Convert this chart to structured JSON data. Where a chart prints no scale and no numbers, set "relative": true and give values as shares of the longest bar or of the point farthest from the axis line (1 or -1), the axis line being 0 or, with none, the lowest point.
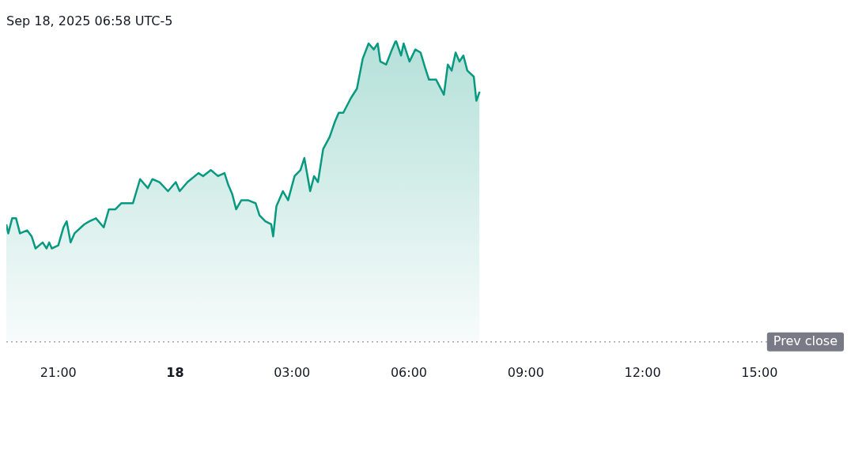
{
  "chart_data": {
    "type": "area",
    "title": "Sep 18, 2025 06:58 UTC-5",
    "relative": true,
    "x": [
      "2025-09-17T19:40",
      "2025-09-17T19:43",
      "2025-09-17T19:49",
      "2025-09-17T19:55",
      "2025-09-17T20:01",
      "2025-09-17T20:12",
      "2025-09-17T20:19",
      "2025-09-17T20:25",
      "2025-09-17T20:36",
      "2025-09-17T20:42",
      "2025-09-17T20:46",
      "2025-09-17T20:50",
      "2025-09-17T21:00",
      "2025-09-17T21:08",
      "2025-09-17T21:13",
      "2025-09-17T21:19",
      "2025-09-17T21:25",
      "2025-09-17T21:40",
      "2025-09-17T21:48",
      "2025-09-17T21:58",
      "2025-09-17T22:10",
      "2025-09-17T22:18",
      "2025-09-17T22:28",
      "2025-09-17T22:37",
      "2025-09-17T22:46",
      "2025-09-17T22:55",
      "2025-09-17T23:06",
      "2025-09-17T23:18",
      "2025-09-17T23:25",
      "2025-09-17T23:36",
      "2025-09-17T23:49",
      "2025-09-18T00:01",
      "2025-09-18T00:07",
      "2025-09-18T00:19",
      "2025-09-18T00:36",
      "2025-09-18T00:43",
      "2025-09-18T00:55",
      "2025-09-18T01:06",
      "2025-09-18T01:16",
      "2025-09-18T01:22",
      "2025-09-18T01:28",
      "2025-09-18T01:34",
      "2025-09-18T01:42",
      "2025-09-18T01:52",
      "2025-09-18T02:04",
      "2025-09-18T02:10",
      "2025-09-18T02:19",
      "2025-09-18T02:28",
      "2025-09-18T02:31",
      "2025-09-18T02:36",
      "2025-09-18T02:46",
      "2025-09-18T02:54",
      "2025-09-18T03:04",
      "2025-09-18T03:13",
      "2025-09-18T03:19",
      "2025-09-18T03:28",
      "2025-09-18T03:34",
      "2025-09-18T03:40",
      "2025-09-18T03:48",
      "2025-09-18T03:58",
      "2025-09-18T04:06",
      "2025-09-18T04:12",
      "2025-09-18T04:19",
      "2025-09-18T04:31",
      "2025-09-18T04:40",
      "2025-09-18T04:49",
      "2025-09-18T04:58",
      "2025-09-18T05:06",
      "2025-09-18T05:12",
      "2025-09-18T05:16",
      "2025-09-18T05:25",
      "2025-09-18T05:34",
      "2025-09-18T05:40",
      "2025-09-18T05:48",
      "2025-09-18T05:52",
      "2025-09-18T06:01",
      "2025-09-18T06:10",
      "2025-09-18T06:18",
      "2025-09-18T06:25",
      "2025-09-18T06:31",
      "2025-09-18T06:42",
      "2025-09-18T06:54",
      "2025-09-18T07:00",
      "2025-09-18T07:06",
      "2025-09-18T07:12",
      "2025-09-18T07:18",
      "2025-09-18T07:24",
      "2025-09-18T07:30",
      "2025-09-18T07:40",
      "2025-09-18T07:44",
      "2025-09-18T07:49"
    ],
    "series": [
      {
        "color": "#089981",
        "values": [
          0.39,
          0.36,
          0.41,
          0.41,
          0.36,
          0.37,
          0.35,
          0.31,
          0.33,
          0.31,
          0.33,
          0.31,
          0.32,
          0.38,
          0.4,
          0.33,
          0.36,
          0.39,
          0.4,
          0.41,
          0.38,
          0.44,
          0.44,
          0.46,
          0.46,
          0.46,
          0.54,
          0.51,
          0.54,
          0.53,
          0.5,
          0.53,
          0.5,
          0.53,
          0.56,
          0.55,
          0.57,
          0.55,
          0.56,
          0.52,
          0.49,
          0.44,
          0.47,
          0.47,
          0.46,
          0.42,
          0.4,
          0.39,
          0.35,
          0.45,
          0.5,
          0.47,
          0.55,
          0.57,
          0.61,
          0.5,
          0.55,
          0.53,
          0.64,
          0.68,
          0.73,
          0.76,
          0.76,
          0.81,
          0.84,
          0.94,
          0.99,
          0.97,
          0.99,
          0.93,
          0.92,
          0.97,
          1.0,
          0.95,
          0.99,
          0.93,
          0.97,
          0.96,
          0.91,
          0.87,
          0.87,
          0.82,
          0.92,
          0.9,
          0.96,
          0.93,
          0.95,
          0.9,
          0.88,
          0.8,
          0.83
        ]
      }
    ],
    "xlim": [
      "2025-09-17T19:40",
      "2025-09-18T17:10"
    ],
    "xticks": [
      {
        "value": "2025-09-17T21:00",
        "label": "21:00"
      },
      {
        "value": "2025-09-18T00:00",
        "label": "18"
      },
      {
        "value": "2025-09-18T03:00",
        "label": "03:00"
      },
      {
        "value": "2025-09-18T06:00",
        "label": "06:00"
      },
      {
        "value": "2025-09-18T09:00",
        "label": "09:00"
      },
      {
        "value": "2025-09-18T12:00",
        "label": "12:00"
      },
      {
        "value": "2025-09-18T15:00",
        "label": "15:00"
      }
    ],
    "ref_lines": [
      {
        "axis": "y",
        "value": 0,
        "label": "Prev close",
        "color": "#787b86",
        "line_style": "dotted"
      }
    ],
    "grid": false,
    "legend": false,
    "marker": "none",
    "line_style": "solid"
  }
}
